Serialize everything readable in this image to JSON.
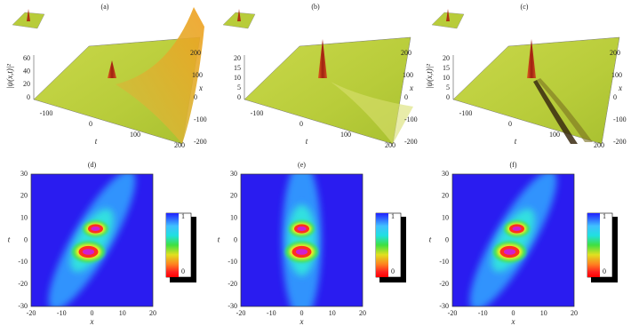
{
  "surface_panels": [
    {
      "title": "(a)",
      "z_label": "|ψ(x,t)|²",
      "z_ticks": [
        0,
        20,
        40,
        60
      ],
      "t_label": "t",
      "t_ticks": [
        -100,
        0,
        100,
        200
      ],
      "x_label": "x",
      "x_ticks": [
        200,
        100,
        0,
        -100,
        -200
      ]
    },
    {
      "title": "(b)",
      "z_ticks": [
        0,
        5,
        10,
        15,
        20
      ],
      "t_label": "t",
      "t_ticks": [
        -100,
        0,
        100,
        200
      ],
      "x_label": "x",
      "x_ticks": [
        200,
        100,
        0,
        -100,
        -200
      ]
    },
    {
      "title": "(c)",
      "z_label": "|ψ(x,t)|²",
      "z_ticks": [
        0,
        5,
        10,
        15,
        20
      ],
      "t_label": "t",
      "t_ticks": [
        -100,
        0,
        100,
        200
      ],
      "x_label": "x",
      "x_ticks": [
        200,
        100,
        0,
        -100,
        -200
      ]
    }
  ],
  "density_panels": [
    {
      "title": "(d)",
      "x_label": "x",
      "x_ticks": [
        -20,
        -10,
        0,
        10,
        20
      ],
      "y_label": "t",
      "y_ticks": [
        30,
        20,
        10,
        0,
        -10,
        -20,
        -30
      ],
      "colorbar_labels": [
        "1",
        "0"
      ]
    },
    {
      "title": "(e)",
      "x_label": "x",
      "x_ticks": [
        -20,
        -10,
        0,
        10,
        20
      ],
      "y_label": "t",
      "y_ticks": [
        30,
        20,
        10,
        0,
        -10,
        -20,
        -30
      ],
      "colorbar_labels": [
        "1",
        "0"
      ]
    },
    {
      "title": "(f)",
      "x_label": "x",
      "x_ticks": [
        -20,
        -10,
        0,
        10,
        20
      ],
      "y_label": "t",
      "y_ticks": [
        30,
        20,
        10,
        0,
        -10,
        -20,
        -30
      ],
      "colorbar_labels": [
        "1",
        "0"
      ]
    }
  ]
}
